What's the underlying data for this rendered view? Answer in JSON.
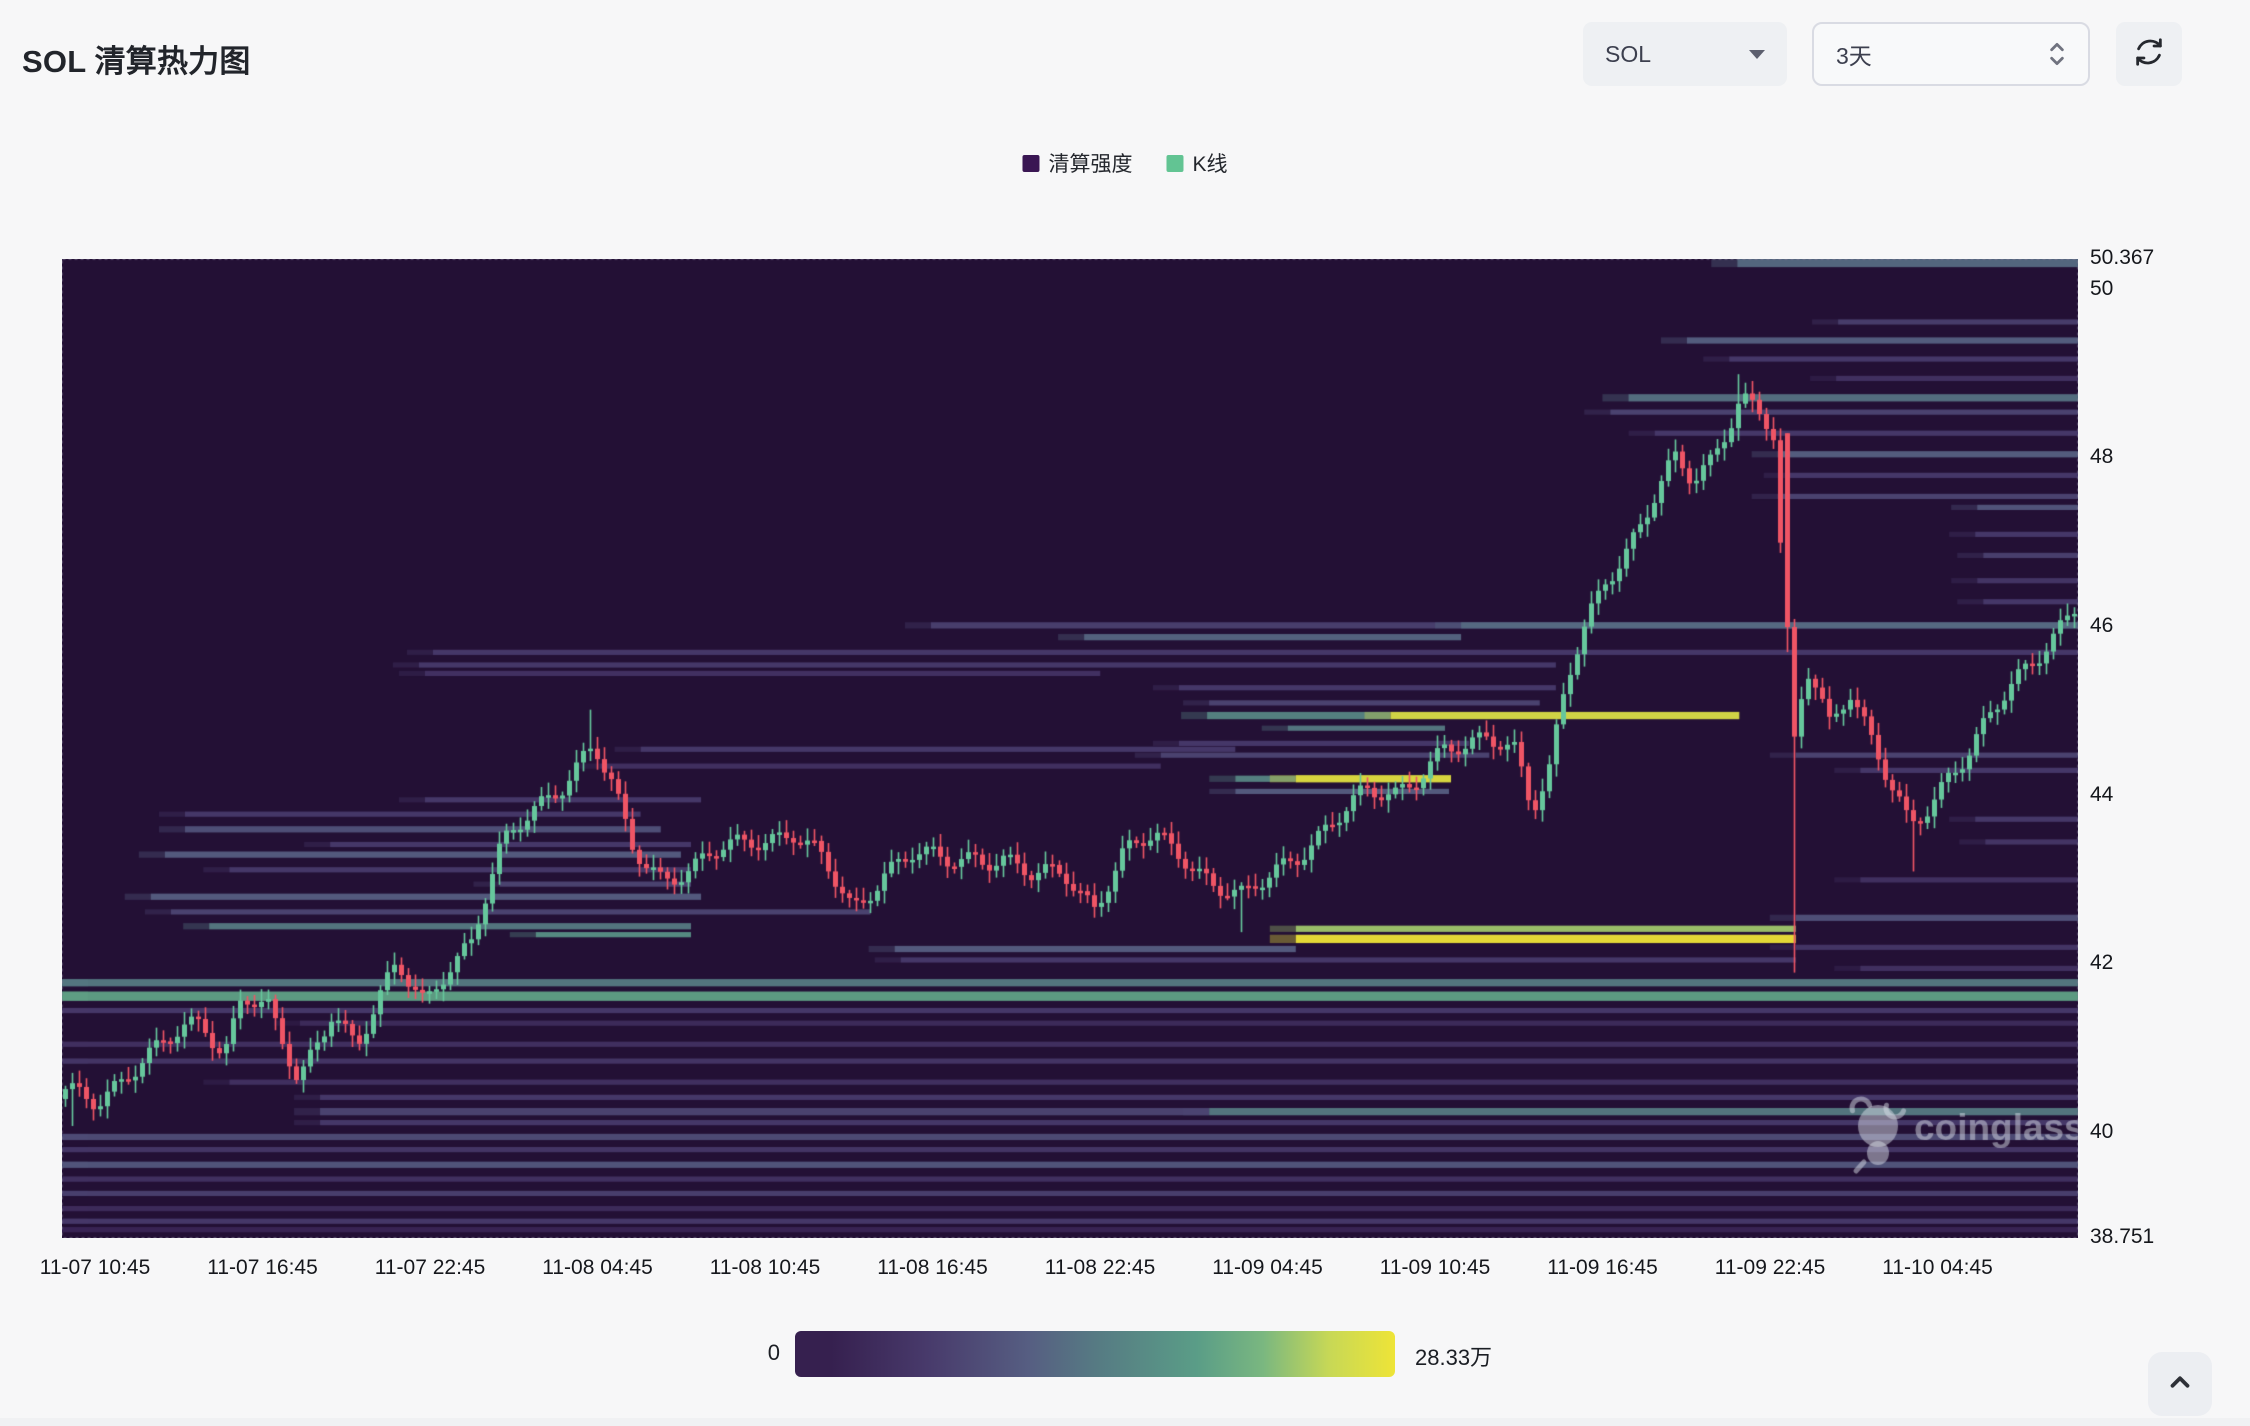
{
  "page": {
    "title": "SOL 清算热力图"
  },
  "controls": {
    "symbol": "SOL",
    "timeframe": "3天"
  },
  "legend": [
    {
      "label": "清算强度",
      "color": "#3a1653"
    },
    {
      "label": "K线",
      "color": "#62c493"
    }
  ],
  "colorbar": {
    "min_label": "0",
    "max_label": "28.33万"
  },
  "watermark": {
    "text": "coinglass"
  },
  "chart_data": {
    "type": "heatmap",
    "subtype": "liquidation-heatmap-with-candlesticks",
    "title": "SOL 清算热力图",
    "series_names": [
      "清算强度",
      "K线"
    ],
    "x_labels": [
      "11-07 10:45",
      "11-07 16:45",
      "11-07 22:45",
      "11-08 04:45",
      "11-08 10:45",
      "11-08 16:45",
      "11-08 22:45",
      "11-09 04:45",
      "11-09 10:45",
      "11-09 16:45",
      "11-09 22:45",
      "11-10 04:45"
    ],
    "y_ticks": [
      {
        "label": "50.367",
        "value": 50.367
      },
      {
        "label": "50",
        "value": 50
      },
      {
        "label": "48",
        "value": 48
      },
      {
        "label": "46",
        "value": 46
      },
      {
        "label": "44",
        "value": 44
      },
      {
        "label": "42",
        "value": 42
      },
      {
        "label": "40",
        "value": 40
      },
      {
        "label": "38.751",
        "value": 38.751
      }
    ],
    "price_range": [
      38.751,
      50.367
    ],
    "intensity_range": [
      0,
      283300
    ],
    "n_candles": 288,
    "price_path": [
      [
        0.0,
        40.45
      ],
      [
        0.016,
        40.35
      ],
      [
        0.031,
        40.75
      ],
      [
        0.049,
        41.05
      ],
      [
        0.068,
        41.3
      ],
      [
        0.079,
        40.95
      ],
      [
        0.088,
        41.7
      ],
      [
        0.101,
        41.45
      ],
      [
        0.116,
        40.55
      ],
      [
        0.124,
        41.0
      ],
      [
        0.133,
        41.5
      ],
      [
        0.145,
        41.05
      ],
      [
        0.165,
        41.95
      ],
      [
        0.179,
        41.55
      ],
      [
        0.19,
        42.0
      ],
      [
        0.202,
        42.25
      ],
      [
        0.217,
        43.35
      ],
      [
        0.232,
        43.85
      ],
      [
        0.247,
        44.15
      ],
      [
        0.263,
        44.55
      ],
      [
        0.272,
        44.1
      ],
      [
        0.282,
        43.4
      ],
      [
        0.297,
        43.05
      ],
      [
        0.312,
        43.1
      ],
      [
        0.327,
        43.35
      ],
      [
        0.342,
        43.5
      ],
      [
        0.362,
        43.55
      ],
      [
        0.377,
        43.2
      ],
      [
        0.392,
        42.65
      ],
      [
        0.407,
        43.1
      ],
      [
        0.422,
        43.3
      ],
      [
        0.437,
        43.2
      ],
      [
        0.452,
        43.3
      ],
      [
        0.467,
        43.25
      ],
      [
        0.482,
        43.0
      ],
      [
        0.497,
        43.1
      ],
      [
        0.512,
        42.7
      ],
      [
        0.527,
        43.3
      ],
      [
        0.542,
        43.5
      ],
      [
        0.557,
        43.3
      ],
      [
        0.572,
        42.95
      ],
      [
        0.587,
        42.75
      ],
      [
        0.602,
        43.1
      ],
      [
        0.617,
        43.4
      ],
      [
        0.632,
        43.7
      ],
      [
        0.647,
        44.0
      ],
      [
        0.662,
        44.05
      ],
      [
        0.675,
        44.3
      ],
      [
        0.687,
        44.55
      ],
      [
        0.698,
        44.5
      ],
      [
        0.708,
        44.7
      ],
      [
        0.722,
        44.6
      ],
      [
        0.73,
        43.9
      ],
      [
        0.738,
        44.2
      ],
      [
        0.747,
        45.3
      ],
      [
        0.757,
        46.0
      ],
      [
        0.767,
        46.6
      ],
      [
        0.775,
        46.85
      ],
      [
        0.783,
        47.2
      ],
      [
        0.792,
        47.6
      ],
      [
        0.801,
        47.95
      ],
      [
        0.81,
        47.7
      ],
      [
        0.82,
        48.0
      ],
      [
        0.828,
        48.45
      ],
      [
        0.834,
        48.8
      ],
      [
        0.843,
        48.55
      ],
      [
        0.85,
        48.3
      ],
      [
        0.856,
        46.0
      ],
      [
        0.86,
        44.8
      ],
      [
        0.868,
        45.5
      ],
      [
        0.878,
        44.9
      ],
      [
        0.888,
        45.3
      ],
      [
        0.898,
        44.7
      ],
      [
        0.908,
        44.1
      ],
      [
        0.918,
        43.6
      ],
      [
        0.928,
        43.9
      ],
      [
        0.938,
        44.3
      ],
      [
        0.948,
        44.55
      ],
      [
        0.958,
        44.9
      ],
      [
        0.968,
        45.25
      ],
      [
        0.978,
        45.55
      ],
      [
        0.988,
        45.9
      ],
      [
        1.0,
        46.25
      ]
    ],
    "wick_overrides": [
      {
        "i": 1,
        "low": 40.08
      },
      {
        "i": 75,
        "high": 45.02
      },
      {
        "i": 168,
        "low": 42.38
      },
      {
        "i": 239,
        "high": 49.0
      },
      {
        "i": 246,
        "open": 48.3,
        "close": 46.0
      },
      {
        "i": 247,
        "open": 46.0,
        "close": 44.7,
        "low": 41.9
      },
      {
        "i": 264,
        "low": 43.1
      }
    ],
    "bands": [
      [
        50.32,
        0.831,
        1.0,
        0.5,
        1.6
      ],
      [
        49.62,
        0.881,
        1.0,
        0.32,
        1
      ],
      [
        49.4,
        0.806,
        1.0,
        0.46,
        1.2
      ],
      [
        49.18,
        0.827,
        1.0,
        0.3,
        1
      ],
      [
        48.95,
        0.88,
        1.0,
        0.25,
        1
      ],
      [
        48.72,
        0.777,
        1.0,
        0.52,
        1.4
      ],
      [
        48.55,
        0.768,
        1.0,
        0.35,
        1
      ],
      [
        48.3,
        0.79,
        1.0,
        0.3,
        1
      ],
      [
        48.05,
        0.851,
        1.0,
        0.46,
        1.2
      ],
      [
        47.8,
        0.857,
        1.0,
        0.3,
        1
      ],
      [
        47.55,
        0.851,
        1.0,
        0.35,
        1
      ],
      [
        47.42,
        0.95,
        1.0,
        0.42,
        1
      ],
      [
        47.1,
        0.949,
        1.0,
        0.3,
        1
      ],
      [
        46.85,
        0.953,
        1.0,
        0.33,
        1
      ],
      [
        46.55,
        0.95,
        1.0,
        0.28,
        1
      ],
      [
        46.3,
        0.953,
        1.0,
        0.3,
        1
      ],
      [
        46.02,
        0.431,
        1.0,
        0.33,
        1.2
      ],
      [
        46.02,
        0.694,
        1.0,
        0.5,
        1.2
      ],
      [
        45.88,
        0.507,
        0.694,
        0.48,
        1.2
      ],
      [
        45.7,
        0.184,
        1.0,
        0.3,
        1
      ],
      [
        45.55,
        0.177,
        0.741,
        0.3,
        1
      ],
      [
        45.45,
        0.18,
        0.515,
        0.26,
        1
      ],
      [
        45.28,
        0.554,
        0.741,
        0.3,
        1
      ],
      [
        45.1,
        0.569,
        0.733,
        0.35,
        1
      ],
      [
        44.95,
        0.568,
        0.659,
        0.6,
        1.4
      ],
      [
        44.95,
        0.659,
        0.832,
        0.95,
        1.4
      ],
      [
        44.8,
        0.608,
        0.686,
        0.55,
        1
      ],
      [
        44.62,
        0.554,
        0.698,
        0.3,
        1
      ],
      [
        44.48,
        0.545,
        0.708,
        0.35,
        1
      ],
      [
        44.48,
        0.86,
        1.0,
        0.35,
        1
      ],
      [
        44.3,
        0.892,
        1.0,
        0.3,
        1
      ],
      [
        44.2,
        0.582,
        0.612,
        0.6,
        1.2
      ],
      [
        44.2,
        0.612,
        0.689,
        0.97,
        1.4
      ],
      [
        44.05,
        0.582,
        0.688,
        0.45,
        1
      ],
      [
        44.55,
        0.287,
        0.582,
        0.3,
        1
      ],
      [
        44.35,
        0.267,
        0.545,
        0.25,
        1
      ],
      [
        43.95,
        0.18,
        0.317,
        0.3,
        1
      ],
      [
        43.78,
        0.061,
        0.287,
        0.3,
        1
      ],
      [
        43.72,
        0.949,
        1.0,
        0.3,
        1
      ],
      [
        43.6,
        0.061,
        0.297,
        0.4,
        1.2
      ],
      [
        43.45,
        0.954,
        1.0,
        0.28,
        1
      ],
      [
        43.42,
        0.133,
        0.312,
        0.3,
        1
      ],
      [
        43.3,
        0.051,
        0.307,
        0.45,
        1.2
      ],
      [
        43.12,
        0.083,
        0.312,
        0.3,
        1
      ],
      [
        43.0,
        0.892,
        1.0,
        0.25,
        1
      ],
      [
        42.95,
        0.217,
        0.312,
        0.35,
        1
      ],
      [
        42.8,
        0.044,
        0.317,
        0.45,
        1.2
      ],
      [
        42.62,
        0.054,
        0.401,
        0.35,
        1
      ],
      [
        42.55,
        0.86,
        1.0,
        0.4,
        1.2
      ],
      [
        42.45,
        0.073,
        0.312,
        0.55,
        1.2
      ],
      [
        42.35,
        0.235,
        0.312,
        0.65,
        1
      ],
      [
        42.42,
        0.612,
        0.86,
        0.85,
        1.2
      ],
      [
        42.3,
        0.612,
        0.86,
        1.0,
        1.6
      ],
      [
        42.18,
        0.413,
        0.612,
        0.45,
        1.2
      ],
      [
        42.2,
        0.86,
        1.0,
        0.28,
        1
      ],
      [
        42.05,
        0.416,
        0.86,
        0.3,
        1
      ],
      [
        41.95,
        0.892,
        1.0,
        0.25,
        1
      ],
      [
        41.78,
        0.0,
        1.0,
        0.55,
        1.4
      ],
      [
        41.62,
        0.0,
        1.0,
        0.72,
        1.8
      ],
      [
        41.45,
        0.0,
        1.0,
        0.3,
        1
      ],
      [
        41.3,
        0.118,
        1.0,
        0.22,
        1
      ],
      [
        41.05,
        0.0,
        1.0,
        0.25,
        1
      ],
      [
        40.85,
        0.0,
        1.0,
        0.28,
        1
      ],
      [
        40.6,
        0.083,
        1.0,
        0.25,
        1
      ],
      [
        40.42,
        0.128,
        1.0,
        0.3,
        1
      ],
      [
        40.25,
        0.569,
        1.0,
        0.55,
        1.4
      ],
      [
        40.25,
        0.128,
        0.569,
        0.35,
        1.4
      ],
      [
        40.12,
        0.128,
        1.0,
        0.3,
        1
      ],
      [
        39.95,
        0.0,
        1.0,
        0.38,
        1.2
      ],
      [
        39.8,
        0.0,
        1.0,
        0.28,
        1
      ],
      [
        39.62,
        0.0,
        1.0,
        0.42,
        1.2
      ],
      [
        39.45,
        0.0,
        1.0,
        0.25,
        1
      ],
      [
        39.28,
        0.0,
        1.0,
        0.33,
        1
      ],
      [
        39.1,
        0.0,
        1.0,
        0.22,
        1
      ],
      [
        38.95,
        0.0,
        1.0,
        0.3,
        1
      ],
      [
        38.85,
        0.0,
        1.0,
        0.18,
        1
      ]
    ],
    "colors": {
      "background": "#231035",
      "up": "#66c79c",
      "down": "#ef5565",
      "palette": [
        [
          0.0,
          "#241036"
        ],
        [
          0.15,
          "#36204f"
        ],
        [
          0.3,
          "#483a6b"
        ],
        [
          0.45,
          "#565e82"
        ],
        [
          0.55,
          "#567a83"
        ],
        [
          0.7,
          "#5a9d87"
        ],
        [
          0.8,
          "#7ab780"
        ],
        [
          0.9,
          "#c7d856"
        ],
        [
          1.0,
          "#eee437"
        ]
      ]
    },
    "legend_position": "top-center",
    "grid": false
  }
}
